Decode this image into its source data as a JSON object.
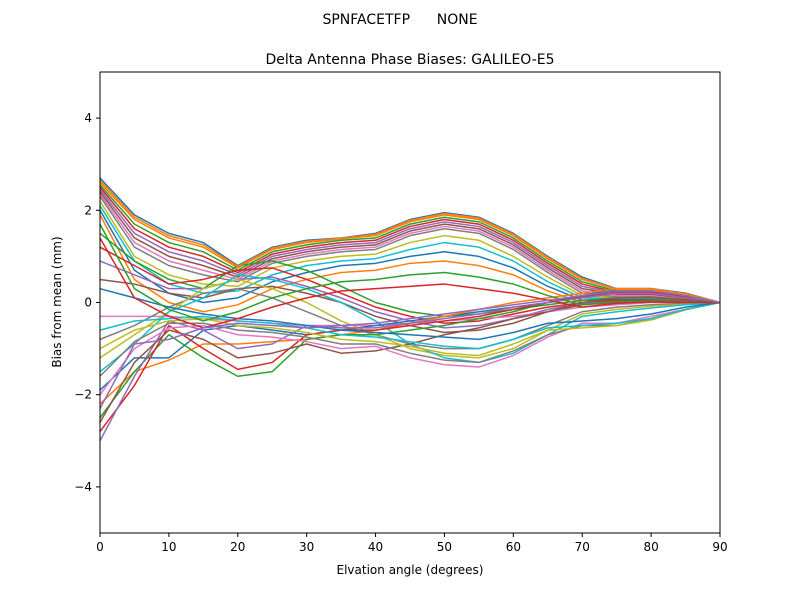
{
  "chart_data": {
    "type": "line",
    "suptitle": "SPNFACETFP      NONE",
    "title": "Delta Antenna Phase Biases: GALILEO-E5",
    "xlabel": "Elvation angle (degrees)",
    "ylabel": "Bias from mean (mm)",
    "xlim": [
      0,
      90
    ],
    "ylim": [
      -5,
      5
    ],
    "xticks": [
      0,
      10,
      20,
      30,
      40,
      50,
      60,
      70,
      80,
      90
    ],
    "yticks": [
      -4,
      -2,
      0,
      2,
      4
    ],
    "grid": false,
    "legend": "none",
    "x": [
      0,
      5,
      10,
      15,
      20,
      25,
      30,
      35,
      40,
      45,
      50,
      55,
      60,
      65,
      70,
      75,
      80,
      85,
      90
    ],
    "series": [
      {
        "values": [
          2.7,
          1.9,
          1.5,
          1.3,
          0.8,
          1.2,
          1.35,
          1.4,
          1.5,
          1.8,
          1.95,
          1.85,
          1.5,
          1.0,
          0.55,
          0.3,
          0.3,
          0.2,
          0.0
        ]
      },
      {
        "values": [
          2.6,
          1.8,
          1.4,
          1.2,
          0.75,
          1.15,
          1.3,
          1.38,
          1.45,
          1.75,
          1.9,
          1.8,
          1.45,
          0.95,
          0.5,
          0.28,
          0.28,
          0.18,
          0.0
        ]
      },
      {
        "values": [
          2.55,
          1.7,
          1.3,
          1.1,
          0.7,
          1.1,
          1.25,
          1.35,
          1.4,
          1.7,
          1.85,
          1.75,
          1.4,
          0.9,
          0.45,
          0.25,
          0.25,
          0.15,
          0.0
        ]
      },
      {
        "values": [
          2.5,
          1.6,
          1.2,
          1.0,
          0.65,
          1.05,
          1.2,
          1.3,
          1.35,
          1.65,
          1.8,
          1.7,
          1.35,
          0.85,
          0.4,
          0.22,
          0.22,
          0.12,
          0.0
        ]
      },
      {
        "values": [
          2.45,
          1.5,
          1.1,
          0.9,
          0.6,
          1.0,
          1.15,
          1.25,
          1.3,
          1.6,
          1.75,
          1.65,
          1.3,
          0.8,
          0.35,
          0.2,
          0.2,
          0.1,
          0.0
        ]
      },
      {
        "values": [
          2.4,
          1.4,
          1.0,
          0.8,
          0.55,
          0.95,
          1.1,
          1.2,
          1.25,
          1.55,
          1.7,
          1.6,
          1.25,
          0.75,
          0.3,
          0.18,
          0.18,
          0.08,
          0.0
        ]
      },
      {
        "values": [
          2.35,
          1.3,
          0.9,
          0.7,
          0.5,
          0.9,
          1.05,
          1.15,
          1.2,
          1.5,
          1.65,
          1.55,
          1.2,
          0.7,
          0.25,
          0.15,
          0.15,
          0.06,
          0.0
        ]
      },
      {
        "values": [
          2.3,
          1.2,
          0.8,
          0.6,
          0.45,
          0.85,
          1.0,
          1.1,
          1.15,
          1.45,
          1.6,
          1.5,
          1.15,
          0.65,
          0.2,
          0.12,
          0.12,
          0.05,
          0.0
        ]
      },
      {
        "values": [
          2.2,
          1.0,
          0.6,
          0.4,
          0.35,
          0.75,
          0.9,
          1.0,
          1.05,
          1.3,
          1.45,
          1.35,
          1.0,
          0.55,
          0.15,
          0.1,
          0.1,
          0.04,
          0.0
        ]
      },
      {
        "values": [
          2.1,
          0.9,
          0.4,
          0.2,
          0.25,
          0.6,
          0.8,
          0.9,
          0.95,
          1.15,
          1.3,
          1.2,
          0.9,
          0.45,
          0.1,
          0.08,
          0.08,
          0.03,
          0.0
        ]
      },
      {
        "values": [
          2.0,
          0.7,
          0.2,
          0.0,
          0.1,
          0.45,
          0.65,
          0.8,
          0.85,
          1.0,
          1.1,
          1.0,
          0.75,
          0.35,
          0.05,
          0.06,
          0.06,
          0.02,
          0.0
        ]
      },
      {
        "values": [
          1.9,
          0.5,
          0.0,
          -0.2,
          -0.05,
          0.3,
          0.5,
          0.65,
          0.7,
          0.85,
          0.9,
          0.8,
          0.6,
          0.25,
          0.0,
          0.04,
          0.04,
          0.02,
          0.0
        ]
      },
      {
        "values": [
          1.5,
          0.9,
          0.5,
          0.3,
          0.8,
          0.9,
          0.7,
          0.35,
          0.0,
          -0.2,
          -0.3,
          -0.25,
          -0.15,
          -0.05,
          0.05,
          0.1,
          0.1,
          0.05,
          0.0
        ]
      },
      {
        "values": [
          1.2,
          0.8,
          0.4,
          0.5,
          0.7,
          0.75,
          0.5,
          0.2,
          -0.1,
          -0.3,
          -0.45,
          -0.4,
          -0.25,
          -0.1,
          0.0,
          0.05,
          0.05,
          0.03,
          0.0
        ]
      },
      {
        "values": [
          0.9,
          0.6,
          0.3,
          0.3,
          0.5,
          0.55,
          0.35,
          0.1,
          -0.2,
          -0.4,
          -0.55,
          -0.5,
          -0.35,
          -0.15,
          -0.02,
          0.02,
          0.03,
          0.02,
          0.0
        ]
      },
      {
        "values": [
          0.5,
          0.4,
          0.2,
          0.1,
          0.3,
          0.35,
          0.2,
          0.0,
          -0.3,
          -0.5,
          -0.65,
          -0.6,
          -0.45,
          -0.2,
          -0.05,
          0.0,
          0.02,
          0.01,
          0.0
        ]
      },
      {
        "values": [
          -0.3,
          -0.3,
          -0.3,
          -0.35,
          -0.4,
          -0.45,
          -0.5,
          -0.5,
          -0.5,
          -0.45,
          -0.4,
          -0.35,
          -0.3,
          -0.2,
          -0.1,
          -0.05,
          0.0,
          0.0,
          0.0
        ]
      },
      {
        "values": [
          -0.8,
          -0.5,
          -0.1,
          0.2,
          0.3,
          0.1,
          -0.2,
          -0.5,
          -0.7,
          -0.9,
          -1.0,
          -1.0,
          -0.8,
          -0.5,
          -0.2,
          -0.1,
          -0.05,
          -0.02,
          0.0
        ]
      },
      {
        "values": [
          -1.2,
          -0.7,
          -0.2,
          0.3,
          0.5,
          0.3,
          0.0,
          -0.4,
          -0.7,
          -1.0,
          -1.15,
          -1.2,
          -1.0,
          -0.6,
          -0.25,
          -0.15,
          -0.08,
          -0.04,
          0.0
        ]
      },
      {
        "values": [
          -1.5,
          -0.9,
          -0.2,
          0.1,
          0.6,
          0.5,
          0.3,
          0.0,
          -0.4,
          -0.9,
          -1.2,
          -1.3,
          -1.1,
          -0.7,
          -0.3,
          -0.2,
          -0.12,
          -0.05,
          0.0
        ]
      },
      {
        "values": [
          -1.9,
          -1.2,
          -1.2,
          -0.6,
          -0.5,
          -0.6,
          -0.7,
          -0.6,
          -0.5,
          -0.4,
          -0.3,
          -0.2,
          -0.1,
          0.0,
          0.15,
          0.3,
          0.3,
          0.2,
          0.0
        ]
      },
      {
        "values": [
          -2.2,
          -1.5,
          -1.25,
          -0.9,
          -0.9,
          -0.85,
          -0.8,
          -0.7,
          -0.6,
          -0.45,
          -0.3,
          -0.15,
          0.0,
          0.1,
          0.2,
          0.3,
          0.3,
          0.18,
          0.0
        ]
      },
      {
        "values": [
          -2.5,
          -1.5,
          -0.7,
          -1.2,
          -1.6,
          -1.5,
          -0.8,
          -0.7,
          -0.7,
          -0.6,
          -0.5,
          -0.35,
          -0.2,
          0.0,
          0.15,
          0.25,
          0.25,
          0.15,
          0.0
        ]
      },
      {
        "values": [
          -2.8,
          -1.8,
          -0.5,
          -1.0,
          -1.45,
          -1.3,
          -0.7,
          -0.6,
          -0.6,
          -0.5,
          -0.4,
          -0.3,
          -0.15,
          0.0,
          0.12,
          0.22,
          0.22,
          0.12,
          0.0
        ]
      },
      {
        "values": [
          -3.0,
          -1.6,
          -0.4,
          -0.6,
          -1.0,
          -0.9,
          -0.5,
          -0.55,
          -0.55,
          -0.45,
          -0.35,
          -0.25,
          -0.1,
          0.0,
          0.1,
          0.2,
          0.2,
          0.1,
          0.0
        ]
      },
      {
        "values": [
          -2.6,
          -1.3,
          -0.6,
          -0.8,
          -1.2,
          -1.1,
          -0.9,
          -1.1,
          -1.05,
          -0.9,
          -0.7,
          -0.55,
          -0.35,
          -0.2,
          0.0,
          0.1,
          0.12,
          0.06,
          0.0
        ]
      },
      {
        "values": [
          -2.0,
          -1.0,
          -0.55,
          -0.5,
          -0.7,
          -0.75,
          -0.85,
          -1.0,
          -0.95,
          -1.2,
          -1.35,
          -1.4,
          -1.15,
          -0.75,
          -0.45,
          -0.45,
          -0.3,
          -0.15,
          0.0
        ]
      },
      {
        "values": [
          -1.6,
          -0.85,
          -0.45,
          -0.45,
          -0.6,
          -0.65,
          -0.75,
          -0.9,
          -0.9,
          -1.1,
          -1.25,
          -1.3,
          -1.05,
          -0.7,
          -0.5,
          -0.5,
          -0.35,
          -0.15,
          0.0
        ]
      },
      {
        "values": [
          -1.0,
          -0.6,
          -0.4,
          -0.35,
          -0.5,
          -0.55,
          -0.65,
          -0.8,
          -0.85,
          -0.95,
          -1.1,
          -1.15,
          -0.9,
          -0.6,
          -0.55,
          -0.5,
          -0.38,
          -0.16,
          0.0
        ]
      },
      {
        "values": [
          -0.6,
          -0.4,
          -0.35,
          -0.3,
          -0.4,
          -0.45,
          -0.55,
          -0.7,
          -0.75,
          -0.85,
          -0.95,
          -1.0,
          -0.8,
          -0.55,
          -0.5,
          -0.45,
          -0.35,
          -0.15,
          0.0
        ]
      },
      {
        "values": [
          0.3,
          0.1,
          -0.1,
          -0.25,
          -0.35,
          -0.4,
          -0.5,
          -0.6,
          -0.65,
          -0.7,
          -0.75,
          -0.8,
          -0.65,
          -0.45,
          -0.4,
          -0.35,
          -0.25,
          -0.1,
          0.0
        ]
      },
      {
        "values": [
          2.65,
          1.85,
          1.45,
          1.25,
          0.78,
          1.18,
          1.33,
          1.39,
          1.48,
          1.78,
          1.93,
          1.83,
          1.48,
          0.98,
          0.52,
          0.29,
          0.29,
          0.19,
          0.0
        ]
      },
      {
        "values": [
          1.7,
          0.3,
          -0.15,
          -0.4,
          -0.2,
          0.1,
          0.3,
          0.45,
          0.5,
          0.6,
          0.65,
          0.55,
          0.4,
          0.15,
          -0.05,
          0.02,
          0.03,
          0.01,
          0.0
        ]
      },
      {
        "values": [
          1.4,
          0.1,
          -0.3,
          -0.55,
          -0.35,
          -0.1,
          0.1,
          0.25,
          0.3,
          0.35,
          0.4,
          0.3,
          0.2,
          0.05,
          -0.1,
          -0.02,
          0.01,
          0.0,
          0.0
        ]
      },
      {
        "values": [
          -2.3,
          -0.9,
          -0.8,
          -0.55,
          -0.45,
          -0.5,
          -0.55,
          -0.5,
          -0.45,
          -0.35,
          -0.25,
          -0.15,
          -0.05,
          0.05,
          0.15,
          0.25,
          0.25,
          0.15,
          0.0
        ]
      }
    ]
  },
  "colors": [
    "#1f77b4",
    "#ff7f0e",
    "#2ca02c",
    "#d62728",
    "#9467bd",
    "#8c564b",
    "#e377c2",
    "#7f7f7f",
    "#bcbd22",
    "#17becf"
  ]
}
